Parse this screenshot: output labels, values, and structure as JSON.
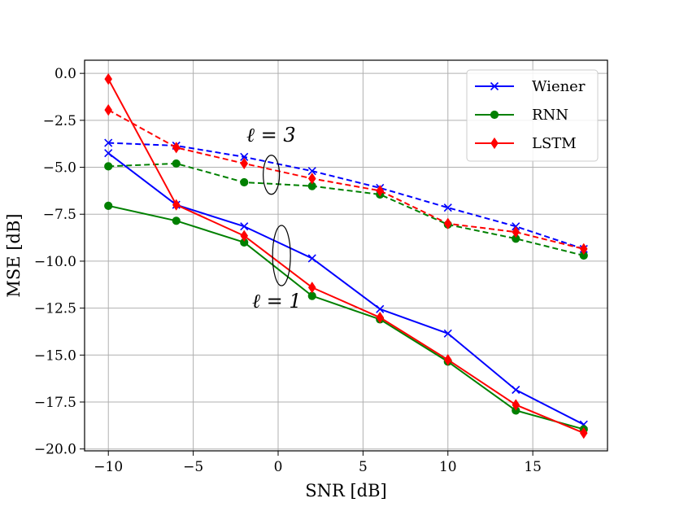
{
  "chart_data": {
    "type": "line",
    "title": "",
    "xlabel": "SNR [dB]",
    "ylabel": "MSE [dB]",
    "xlim": [
      -11.4,
      19.4
    ],
    "ylim": [
      -20.1,
      0.7
    ],
    "grid": true,
    "xticks": [
      -10,
      -5,
      0,
      5,
      10,
      15
    ],
    "xtick_labels": [
      "−10",
      "−5",
      "0",
      "5",
      "10",
      "15"
    ],
    "yticks": [
      0,
      -2.5,
      -5,
      -7.5,
      -10,
      -12.5,
      -15,
      -17.5,
      -20
    ],
    "ytick_labels": [
      "0.0",
      "−2.5",
      "−5.0",
      "−7.5",
      "−10.0",
      "−12.5",
      "−15.0",
      "−17.5",
      "−20.0"
    ],
    "legend": {
      "position": "top-right",
      "entries": [
        {
          "name": "Wiener",
          "color": "#0000ff",
          "marker": "x"
        },
        {
          "name": "RNN",
          "color": "#008000",
          "marker": "circle"
        },
        {
          "name": "LSTM",
          "color": "#ff0000",
          "marker": "diamond"
        }
      ]
    },
    "annotations": [
      {
        "label": "ℓ = 3",
        "group": "dashed curves",
        "ellipse_center": [
          -0.4,
          -5.4
        ]
      },
      {
        "label": "ℓ = 1",
        "group": "solid curves",
        "ellipse_center": [
          0.2,
          -9.7
        ]
      }
    ],
    "series": [
      {
        "name": "Wiener",
        "layers": 3,
        "style": "dashed",
        "color": "#0000ff",
        "marker": "x",
        "x": [
          -10,
          -6,
          -2,
          2,
          6,
          10,
          14,
          18
        ],
        "y": [
          -3.7,
          -3.85,
          -4.45,
          -5.2,
          -6.1,
          -7.15,
          -8.15,
          -9.35
        ]
      },
      {
        "name": "RNN",
        "layers": 3,
        "style": "dashed",
        "color": "#008000",
        "marker": "circle",
        "x": [
          -10,
          -6,
          -2,
          2,
          6,
          10,
          14,
          18
        ],
        "y": [
          -4.95,
          -4.8,
          -5.8,
          -6.0,
          -6.45,
          -8.05,
          -8.8,
          -9.7
        ]
      },
      {
        "name": "LSTM",
        "layers": 3,
        "style": "dashed",
        "color": "#ff0000",
        "marker": "diamond",
        "x": [
          -10,
          -6,
          -2,
          2,
          6,
          10,
          14,
          18
        ],
        "y": [
          -1.95,
          -3.95,
          -4.8,
          -5.6,
          -6.25,
          -8.0,
          -8.45,
          -9.35
        ]
      },
      {
        "name": "Wiener",
        "layers": 1,
        "style": "solid",
        "color": "#0000ff",
        "marker": "x",
        "x": [
          -10,
          -6,
          -2,
          2,
          6,
          10,
          14,
          18
        ],
        "y": [
          -4.25,
          -7.0,
          -8.15,
          -9.85,
          -12.55,
          -13.85,
          -16.85,
          -18.7
        ]
      },
      {
        "name": "RNN",
        "layers": 1,
        "style": "solid",
        "color": "#008000",
        "marker": "circle",
        "x": [
          -10,
          -6,
          -2,
          2,
          6,
          10,
          14,
          18
        ],
        "y": [
          -7.05,
          -7.85,
          -9.0,
          -11.85,
          -13.1,
          -15.35,
          -17.95,
          -18.95
        ]
      },
      {
        "name": "LSTM",
        "layers": 1,
        "style": "solid",
        "color": "#ff0000",
        "marker": "diamond",
        "x": [
          -10,
          -6,
          -2,
          2,
          6,
          10,
          14,
          18
        ],
        "y": [
          -0.3,
          -7.0,
          -8.65,
          -11.4,
          -13.0,
          -15.25,
          -17.65,
          -19.15
        ]
      }
    ]
  }
}
